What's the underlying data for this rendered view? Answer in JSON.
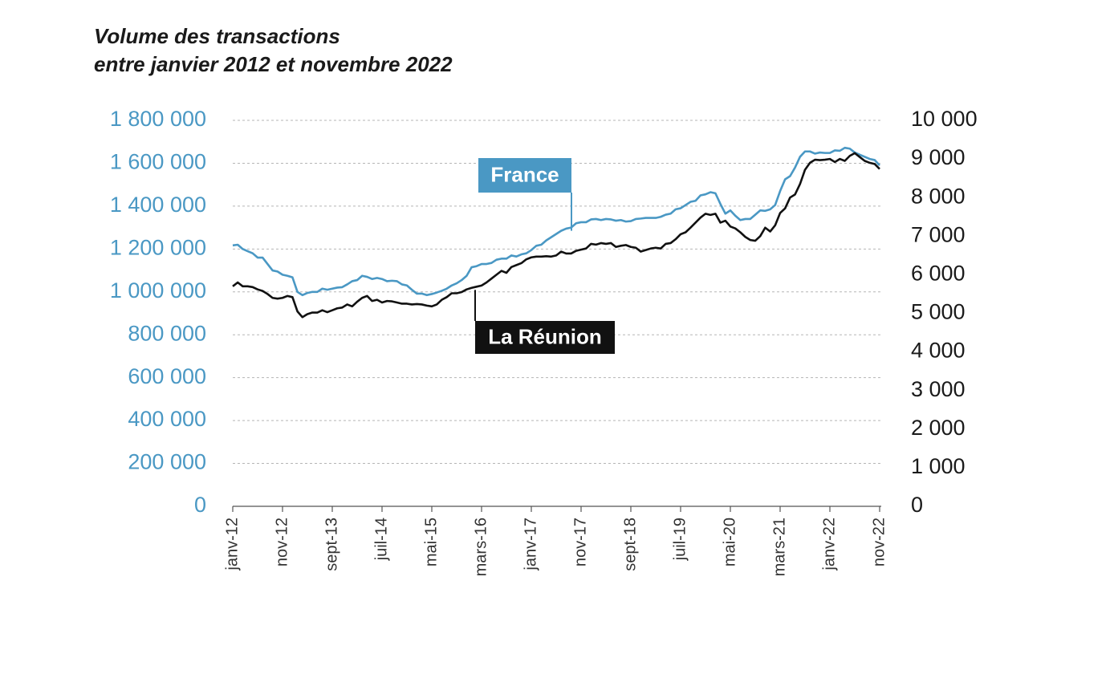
{
  "chart_data": {
    "type": "line",
    "title": "Volume des transactions",
    "subtitle": "entre janvier 2012 et novembre 2022",
    "categories": [
      "janv-12",
      null,
      null,
      null,
      null,
      null,
      null,
      null,
      null,
      null,
      "nov-12",
      null,
      null,
      null,
      null,
      null,
      null,
      null,
      null,
      null,
      "sept-13",
      null,
      null,
      null,
      null,
      null,
      null,
      null,
      null,
      null,
      "juil-14",
      null,
      null,
      null,
      null,
      null,
      null,
      null,
      null,
      null,
      "mai-15",
      null,
      null,
      null,
      null,
      null,
      null,
      null,
      null,
      null,
      "mars-16",
      null,
      null,
      null,
      null,
      null,
      null,
      null,
      null,
      null,
      "janv-17",
      null,
      null,
      null,
      null,
      null,
      null,
      null,
      null,
      null,
      "nov-17",
      null,
      null,
      null,
      null,
      null,
      null,
      null,
      null,
      null,
      "sept-18",
      null,
      null,
      null,
      null,
      null,
      null,
      null,
      null,
      null,
      "juil-19",
      null,
      null,
      null,
      null,
      null,
      null,
      null,
      null,
      null,
      "mai-20",
      null,
      null,
      null,
      null,
      null,
      null,
      null,
      null,
      null,
      "mars-21",
      null,
      null,
      null,
      null,
      null,
      null,
      null,
      null,
      null,
      "janv-22",
      null,
      null,
      null,
      null,
      null,
      null,
      null,
      null,
      null,
      "nov-22"
    ],
    "ylim": [
      0,
      1800000
    ],
    "yticks": [
      0,
      {
        "value": 200000,
        "label": "200 000"
      },
      {
        "value": 400000,
        "label": "400 000"
      },
      {
        "value": 600000,
        "label": "600 000"
      },
      {
        "value": 800000,
        "label": "800 000"
      },
      {
        "value": 1000000,
        "label": "1 000 000"
      },
      {
        "value": 1200000,
        "label": "1 200 000"
      },
      {
        "value": 1400000,
        "label": "1 400 000"
      },
      {
        "value": 1600000,
        "label": "1 600 000"
      },
      {
        "value": 1800000,
        "label": "1 800 000"
      }
    ],
    "y2lim": [
      0,
      10000
    ],
    "y2ticks": [
      0,
      {
        "value": 1000,
        "label": "1 000"
      },
      {
        "value": 2000,
        "label": "2 000"
      },
      {
        "value": 3000,
        "label": "3 000"
      },
      {
        "value": 4000,
        "label": "4 000"
      },
      {
        "value": 5000,
        "label": "5 000"
      },
      {
        "value": 6000,
        "label": "6 000"
      },
      {
        "value": 7000,
        "label": "7 000"
      },
      {
        "value": 8000,
        "label": "8 000"
      },
      {
        "value": 9000,
        "label": "9 000"
      },
      {
        "value": 10000,
        "label": "10 000"
      }
    ],
    "grid": true,
    "series": [
      {
        "name": "France",
        "color": "#4a98c4",
        "values": [
          1217000,
          1220000,
          1200000,
          1190000,
          1180000,
          1160000,
          1160000,
          1130000,
          1100000,
          1095000,
          1080000,
          1075000,
          1068000,
          1000000,
          985000,
          995000,
          1000000,
          1000000,
          1015000,
          1010000,
          1015000,
          1020000,
          1022000,
          1035000,
          1050000,
          1055000,
          1075000,
          1070000,
          1060000,
          1065000,
          1060000,
          1050000,
          1052000,
          1050000,
          1035000,
          1030000,
          1010000,
          992000,
          992000,
          985000,
          990000,
          997000,
          1005000,
          1015000,
          1030000,
          1040000,
          1055000,
          1075000,
          1115000,
          1120000,
          1130000,
          1130000,
          1135000,
          1150000,
          1155000,
          1155000,
          1170000,
          1165000,
          1175000,
          1180000,
          1195000,
          1215000,
          1220000,
          1240000,
          1255000,
          1270000,
          1285000,
          1295000,
          1300000,
          1320000,
          1325000,
          1325000,
          1338000,
          1340000,
          1335000,
          1340000,
          1338000,
          1332000,
          1335000,
          1328000,
          1330000,
          1340000,
          1342000,
          1345000,
          1345000,
          1345000,
          1350000,
          1360000,
          1365000,
          1385000,
          1390000,
          1405000,
          1420000,
          1425000,
          1450000,
          1455000,
          1465000,
          1460000,
          1410000,
          1365000,
          1380000,
          1355000,
          1335000,
          1340000,
          1340000,
          1360000,
          1380000,
          1378000,
          1385000,
          1405000,
          1470000,
          1525000,
          1540000,
          1580000,
          1630000,
          1655000,
          1655000,
          1645000,
          1650000,
          1648000,
          1648000,
          1660000,
          1658000,
          1672000,
          1668000,
          1650000,
          1640000,
          1630000,
          1620000,
          1615000,
          1590000
        ]
      },
      {
        "name": "La Réunion",
        "color": "#111111",
        "axis": "y2",
        "values": [
          5700,
          5800,
          5700,
          5700,
          5680,
          5620,
          5580,
          5500,
          5400,
          5380,
          5400,
          5450,
          5420,
          5050,
          4900,
          4980,
          5020,
          5020,
          5080,
          5030,
          5080,
          5130,
          5150,
          5230,
          5180,
          5300,
          5400,
          5450,
          5320,
          5350,
          5280,
          5320,
          5310,
          5280,
          5250,
          5250,
          5230,
          5240,
          5230,
          5200,
          5180,
          5230,
          5350,
          5420,
          5520,
          5520,
          5550,
          5620,
          5660,
          5690,
          5720,
          5800,
          5900,
          6000,
          6100,
          6050,
          6200,
          6250,
          6300,
          6400,
          6450,
          6470,
          6470,
          6480,
          6470,
          6500,
          6600,
          6550,
          6550,
          6620,
          6650,
          6680,
          6800,
          6780,
          6820,
          6800,
          6820,
          6720,
          6750,
          6770,
          6720,
          6700,
          6600,
          6640,
          6680,
          6700,
          6680,
          6800,
          6820,
          6920,
          7050,
          7100,
          7220,
          7350,
          7480,
          7580,
          7550,
          7580,
          7350,
          7400,
          7250,
          7200,
          7100,
          6980,
          6900,
          6880,
          7000,
          7220,
          7120,
          7280,
          7600,
          7720,
          8000,
          8080,
          8350,
          8720,
          8900,
          8980,
          8970,
          8980,
          9000,
          8920,
          9000,
          8950,
          9080,
          9150,
          9050,
          8950,
          8900,
          8870,
          8740
        ]
      }
    ]
  }
}
